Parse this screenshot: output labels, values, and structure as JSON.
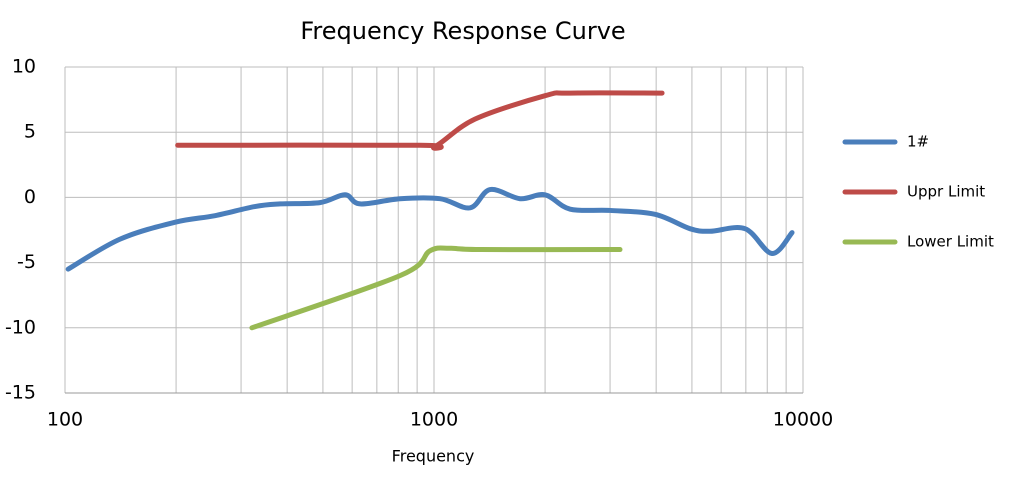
{
  "chart_data": {
    "type": "line",
    "title": "Frequency Response Curve",
    "x_label": "Frequency",
    "xscale": "log",
    "xlim": [
      100,
      10000
    ],
    "xticks": [
      100,
      1000,
      10000
    ],
    "minor_xticks": [
      200,
      300,
      400,
      500,
      600,
      700,
      800,
      900,
      2000,
      3000,
      4000,
      5000,
      6000,
      7000,
      8000,
      9000
    ],
    "ylim": [
      -15,
      10
    ],
    "yticks": [
      -15,
      -10,
      -5,
      0,
      5,
      10
    ],
    "grid": true,
    "legend": "right",
    "series": [
      {
        "name": "1#",
        "color": "#4a7ebb",
        "x": [
          102,
          141,
          199,
          255,
          327,
          383,
          491,
          574,
          631,
          809,
          1038,
          1253,
          1419,
          1711,
          2000,
          2339,
          3000,
          3972,
          4940,
          5597,
          6964,
          8241,
          9339
        ],
        "values": [
          -5.5,
          -3.2,
          -1.9,
          -1.4,
          -0.7,
          -0.5,
          -0.4,
          0.2,
          -0.5,
          -0.1,
          -0.1,
          -0.8,
          0.6,
          -0.1,
          0.2,
          -0.9,
          -1.0,
          -1.3,
          -2.4,
          -2.6,
          -2.4,
          -4.3,
          -2.7
        ]
      },
      {
        "name": "Uppr Limit",
        "color": "#be4b48",
        "x": [
          202,
          917,
          1006,
          1291,
          2000,
          2339,
          4150
        ],
        "values": [
          4,
          4,
          3.9,
          6,
          7.8,
          8,
          8
        ]
      },
      {
        "name": "Lower Limit",
        "color": "#98b954",
        "x": [
          321,
          809,
          975,
          1105,
          1334,
          3192
        ],
        "values": [
          -10,
          -6,
          -4.1,
          -3.9,
          -4,
          -4
        ]
      }
    ]
  }
}
